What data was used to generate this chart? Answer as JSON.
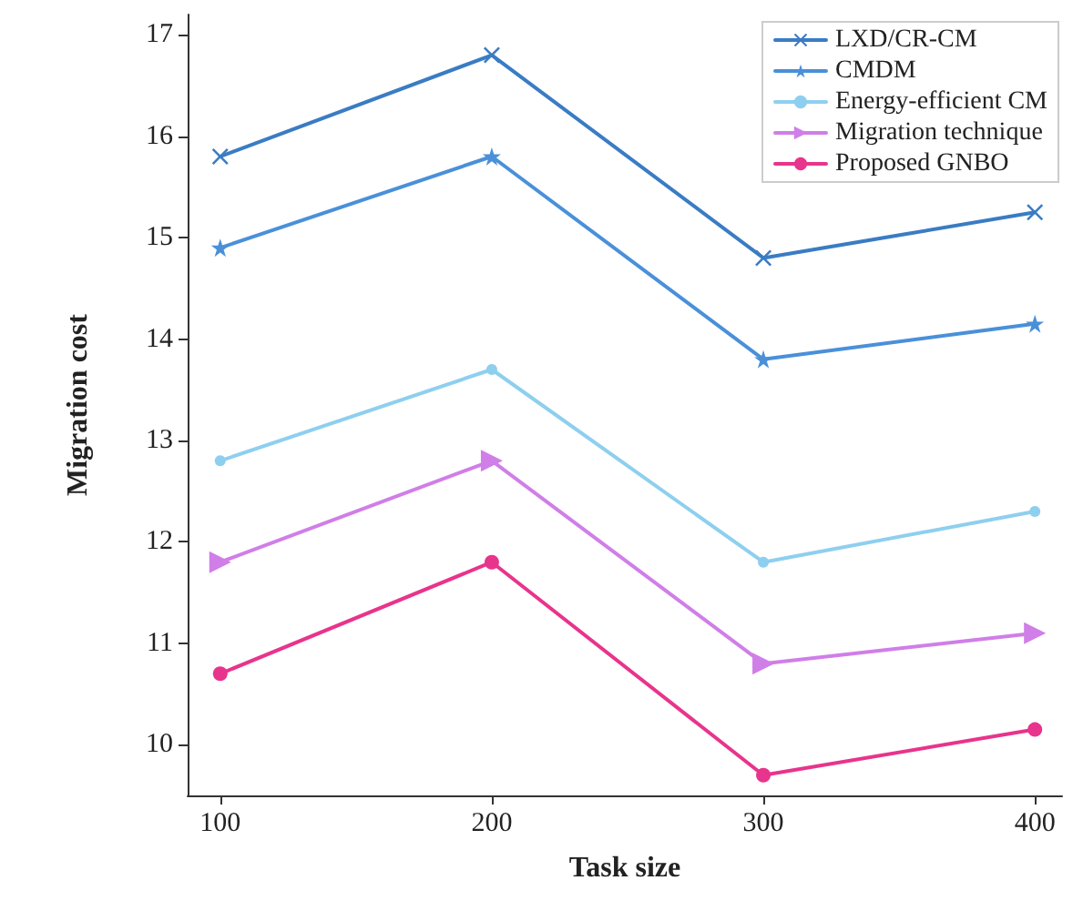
{
  "chart_data": {
    "type": "line",
    "xlabel": "Task size",
    "ylabel": "Migration cost",
    "x": [
      100,
      200,
      300,
      400
    ],
    "xlim": [
      88,
      410
    ],
    "xticks": [
      100,
      200,
      300,
      400
    ],
    "ylim": [
      9.5,
      17.2
    ],
    "yticks": [
      10,
      11,
      12,
      13,
      14,
      15,
      16,
      17
    ],
    "grid": false,
    "legend": "top right",
    "line_style": "solid",
    "series": [
      {
        "name": "LXD/CR-CM",
        "color": "#3a7cc4",
        "marker": "cross",
        "values": [
          15.8,
          16.8,
          14.8,
          15.25
        ]
      },
      {
        "name": "CMDM",
        "color": "#4a90d9",
        "marker": "star",
        "values": [
          14.9,
          15.8,
          13.8,
          14.15
        ]
      },
      {
        "name": "Energy-efficient CM",
        "color": "#8ecfef",
        "marker": "circle",
        "values": [
          12.8,
          13.7,
          11.8,
          12.3
        ]
      },
      {
        "name": "Migration technique",
        "color": "#d07ee8",
        "marker": "triangle",
        "values": [
          11.8,
          12.8,
          10.8,
          11.1
        ]
      },
      {
        "name": "Proposed GNBO",
        "color": "#e8348c",
        "marker": "circle",
        "values": [
          10.7,
          11.8,
          9.7,
          10.15
        ]
      }
    ]
  }
}
